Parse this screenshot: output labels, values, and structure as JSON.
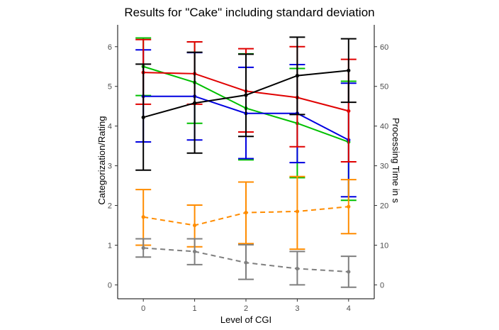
{
  "chart_data": {
    "type": "line",
    "title": "Results for \"Cake\" including standard deviation",
    "xlabel": "Level of CGI",
    "ylabel_left": "Categorization/Rating",
    "ylabel_right": "Processing Time in s",
    "x": [
      0,
      1,
      2,
      3,
      4
    ],
    "xlim": [
      -0.5,
      4.5
    ],
    "ylim_left": [
      -0.35,
      6.55
    ],
    "ylim_right": [
      -3.5,
      65.5
    ],
    "left_ticks": [
      0,
      1,
      2,
      3,
      4,
      5,
      6
    ],
    "right_ticks": [
      0,
      10,
      20,
      30,
      40,
      50,
      60
    ],
    "grid": false,
    "legend": "none",
    "series": [
      {
        "color": "#00c000",
        "style": "solid",
        "axis": "left",
        "values": [
          5.5,
          5.1,
          4.45,
          4.07,
          3.6
        ],
        "lower": [
          4.77,
          4.07,
          3.15,
          2.7,
          2.13
        ],
        "upper": [
          6.22,
          6.12,
          5.82,
          5.45,
          5.13
        ]
      },
      {
        "color": "#0000e0",
        "style": "solid",
        "axis": "left",
        "values": [
          4.75,
          4.75,
          4.32,
          4.32,
          3.65
        ],
        "lower": [
          3.6,
          3.65,
          3.18,
          3.08,
          2.22
        ],
        "upper": [
          5.92,
          5.85,
          5.48,
          5.55,
          5.08
        ]
      },
      {
        "color": "#e00000",
        "style": "solid",
        "axis": "left",
        "values": [
          5.35,
          5.32,
          4.88,
          4.72,
          4.38
        ],
        "lower": [
          4.55,
          4.55,
          3.85,
          3.48,
          3.1
        ],
        "upper": [
          6.18,
          6.12,
          5.95,
          6.0,
          5.68
        ]
      },
      {
        "color": "#000000",
        "style": "solid",
        "axis": "right",
        "values": [
          42.2,
          45.8,
          47.8,
          52.7,
          54.0
        ],
        "lower": [
          28.9,
          33.2,
          37.4,
          42.9,
          46.0
        ],
        "upper": [
          55.6,
          58.6,
          58.1,
          62.4,
          62.0
        ]
      },
      {
        "color": "#ff8c00",
        "style": "dashed",
        "axis": "right",
        "values": [
          17.1,
          15.0,
          18.2,
          18.5,
          19.7
        ],
        "lower": [
          10.0,
          9.6,
          10.4,
          9.0,
          12.9
        ],
        "upper": [
          24.0,
          20.1,
          25.9,
          27.3,
          26.5
        ]
      },
      {
        "color": "#7f7f7f",
        "style": "dashed",
        "axis": "right",
        "values": [
          9.3,
          8.4,
          5.6,
          4.1,
          3.3
        ],
        "lower": [
          7.0,
          5.1,
          1.4,
          0.0,
          -0.6
        ],
        "upper": [
          11.6,
          11.6,
          10.1,
          8.4,
          7.2
        ]
      }
    ]
  }
}
